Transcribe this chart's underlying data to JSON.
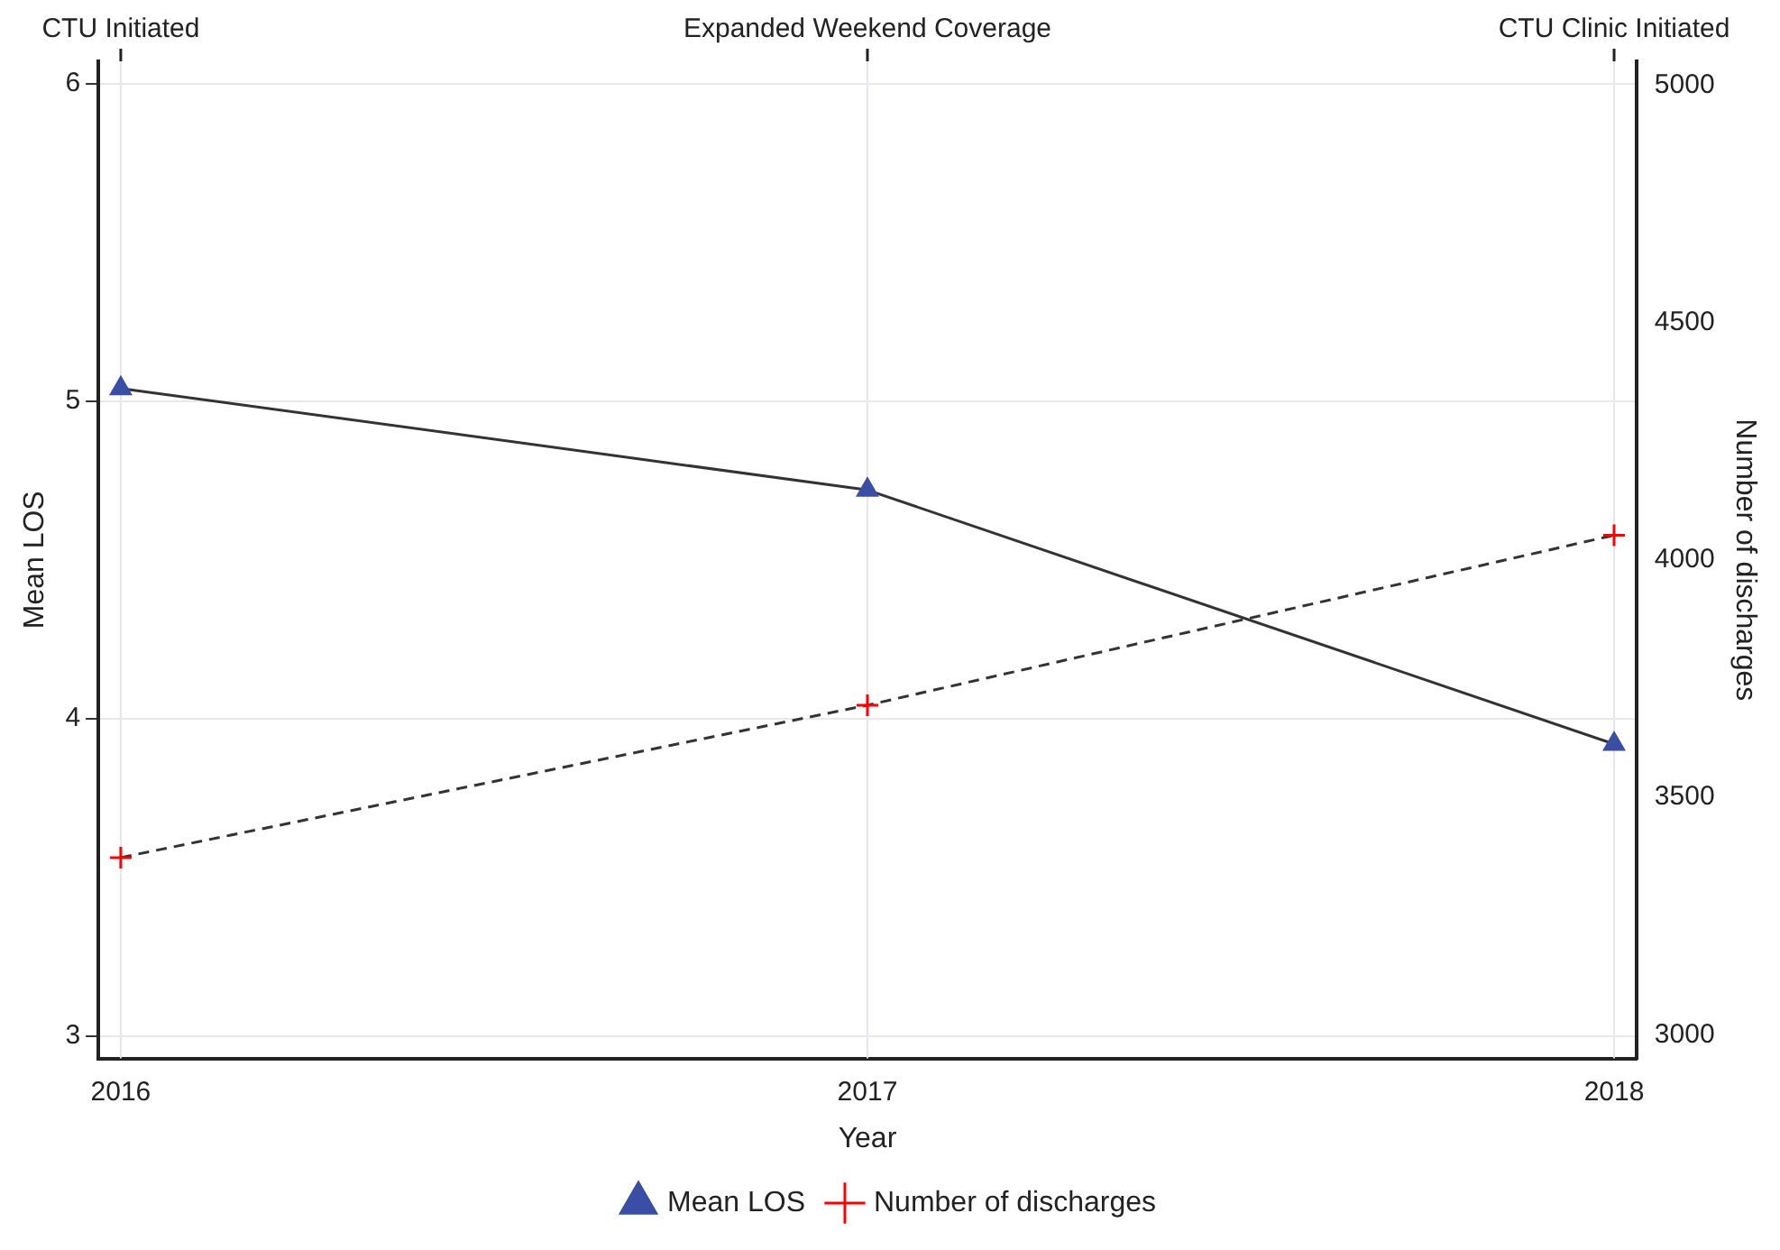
{
  "chart_data": {
    "type": "line",
    "xlabel": "Year",
    "ylabel": "Mean LOS",
    "y2label": "Number of discharges",
    "x": [
      2016,
      2017,
      2018
    ],
    "xlim": [
      2015.97,
      2018.03
    ],
    "xticks": [
      2016,
      2017,
      2018
    ],
    "ref_lines": [
      {
        "axis": "x",
        "value": 2016,
        "label": "CTU Initiated"
      },
      {
        "axis": "x",
        "value": 2017,
        "label": "Expanded Weekend Coverage"
      },
      {
        "axis": "x",
        "value": 2018,
        "label": "CTU Clinic Initiated"
      }
    ],
    "ylim": [
      2.93,
      6.07
    ],
    "yticks": [
      3,
      4,
      5,
      6
    ],
    "y2lim": [
      2950,
      5050
    ],
    "y2ticks": [
      3000,
      3500,
      4000,
      4500,
      5000
    ],
    "series": [
      {
        "name": "Mean LOS",
        "color": "#3a4ea6",
        "values": [
          5.04,
          4.72,
          3.92
        ],
        "marker": "triangle",
        "line_style": "solid"
      },
      {
        "name": "Number of discharges",
        "color": "#ff0000",
        "values": [
          3373,
          3694,
          4052
        ],
        "axis": "y2",
        "marker": "cross",
        "line_style": "dashed"
      }
    ],
    "grid": "y",
    "legend": "bottom"
  }
}
